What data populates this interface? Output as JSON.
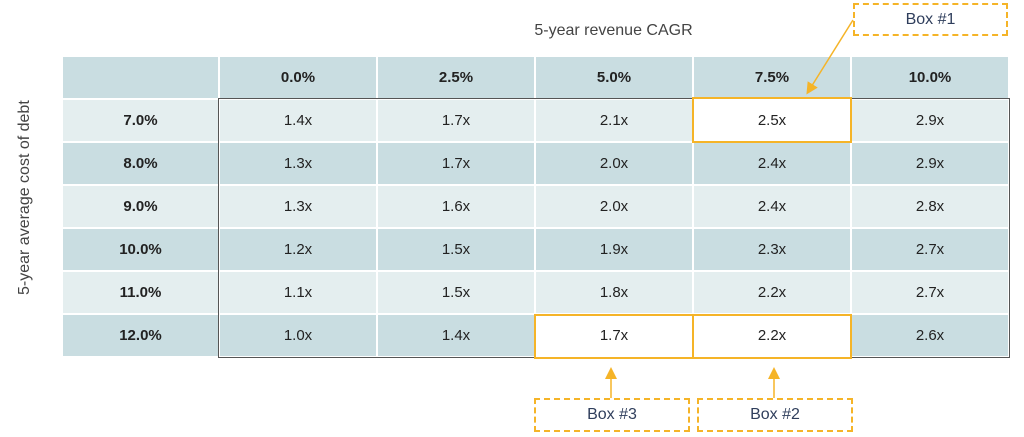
{
  "title": "5-year revenue CAGR",
  "y_label": "5-year average cost of debt",
  "columns": [
    "0.0%",
    "2.5%",
    "5.0%",
    "7.5%",
    "10.0%"
  ],
  "rows": [
    {
      "label": "7.0%",
      "values": [
        "1.4x",
        "1.7x",
        "2.1x",
        "2.5x",
        "2.9x"
      ]
    },
    {
      "label": "8.0%",
      "values": [
        "1.3x",
        "1.7x",
        "2.0x",
        "2.4x",
        "2.9x"
      ]
    },
    {
      "label": "9.0%",
      "values": [
        "1.3x",
        "1.6x",
        "2.0x",
        "2.4x",
        "2.8x"
      ]
    },
    {
      "label": "10.0%",
      "values": [
        "1.2x",
        "1.5x",
        "1.9x",
        "2.3x",
        "2.7x"
      ]
    },
    {
      "label": "11.0%",
      "values": [
        "1.1x",
        "1.5x",
        "1.8x",
        "2.2x",
        "2.7x"
      ]
    },
    {
      "label": "12.0%",
      "values": [
        "1.0x",
        "1.4x",
        "1.7x",
        "2.2x",
        "2.6x"
      ]
    }
  ],
  "callouts": {
    "box1": "Box #1",
    "box2": "Box #2",
    "box3": "Box #3"
  },
  "colors": {
    "accent": "#f5b428",
    "header": "#c9dde1",
    "light_row": "#e4eeef",
    "callout_text": "#2f3e5c"
  }
}
